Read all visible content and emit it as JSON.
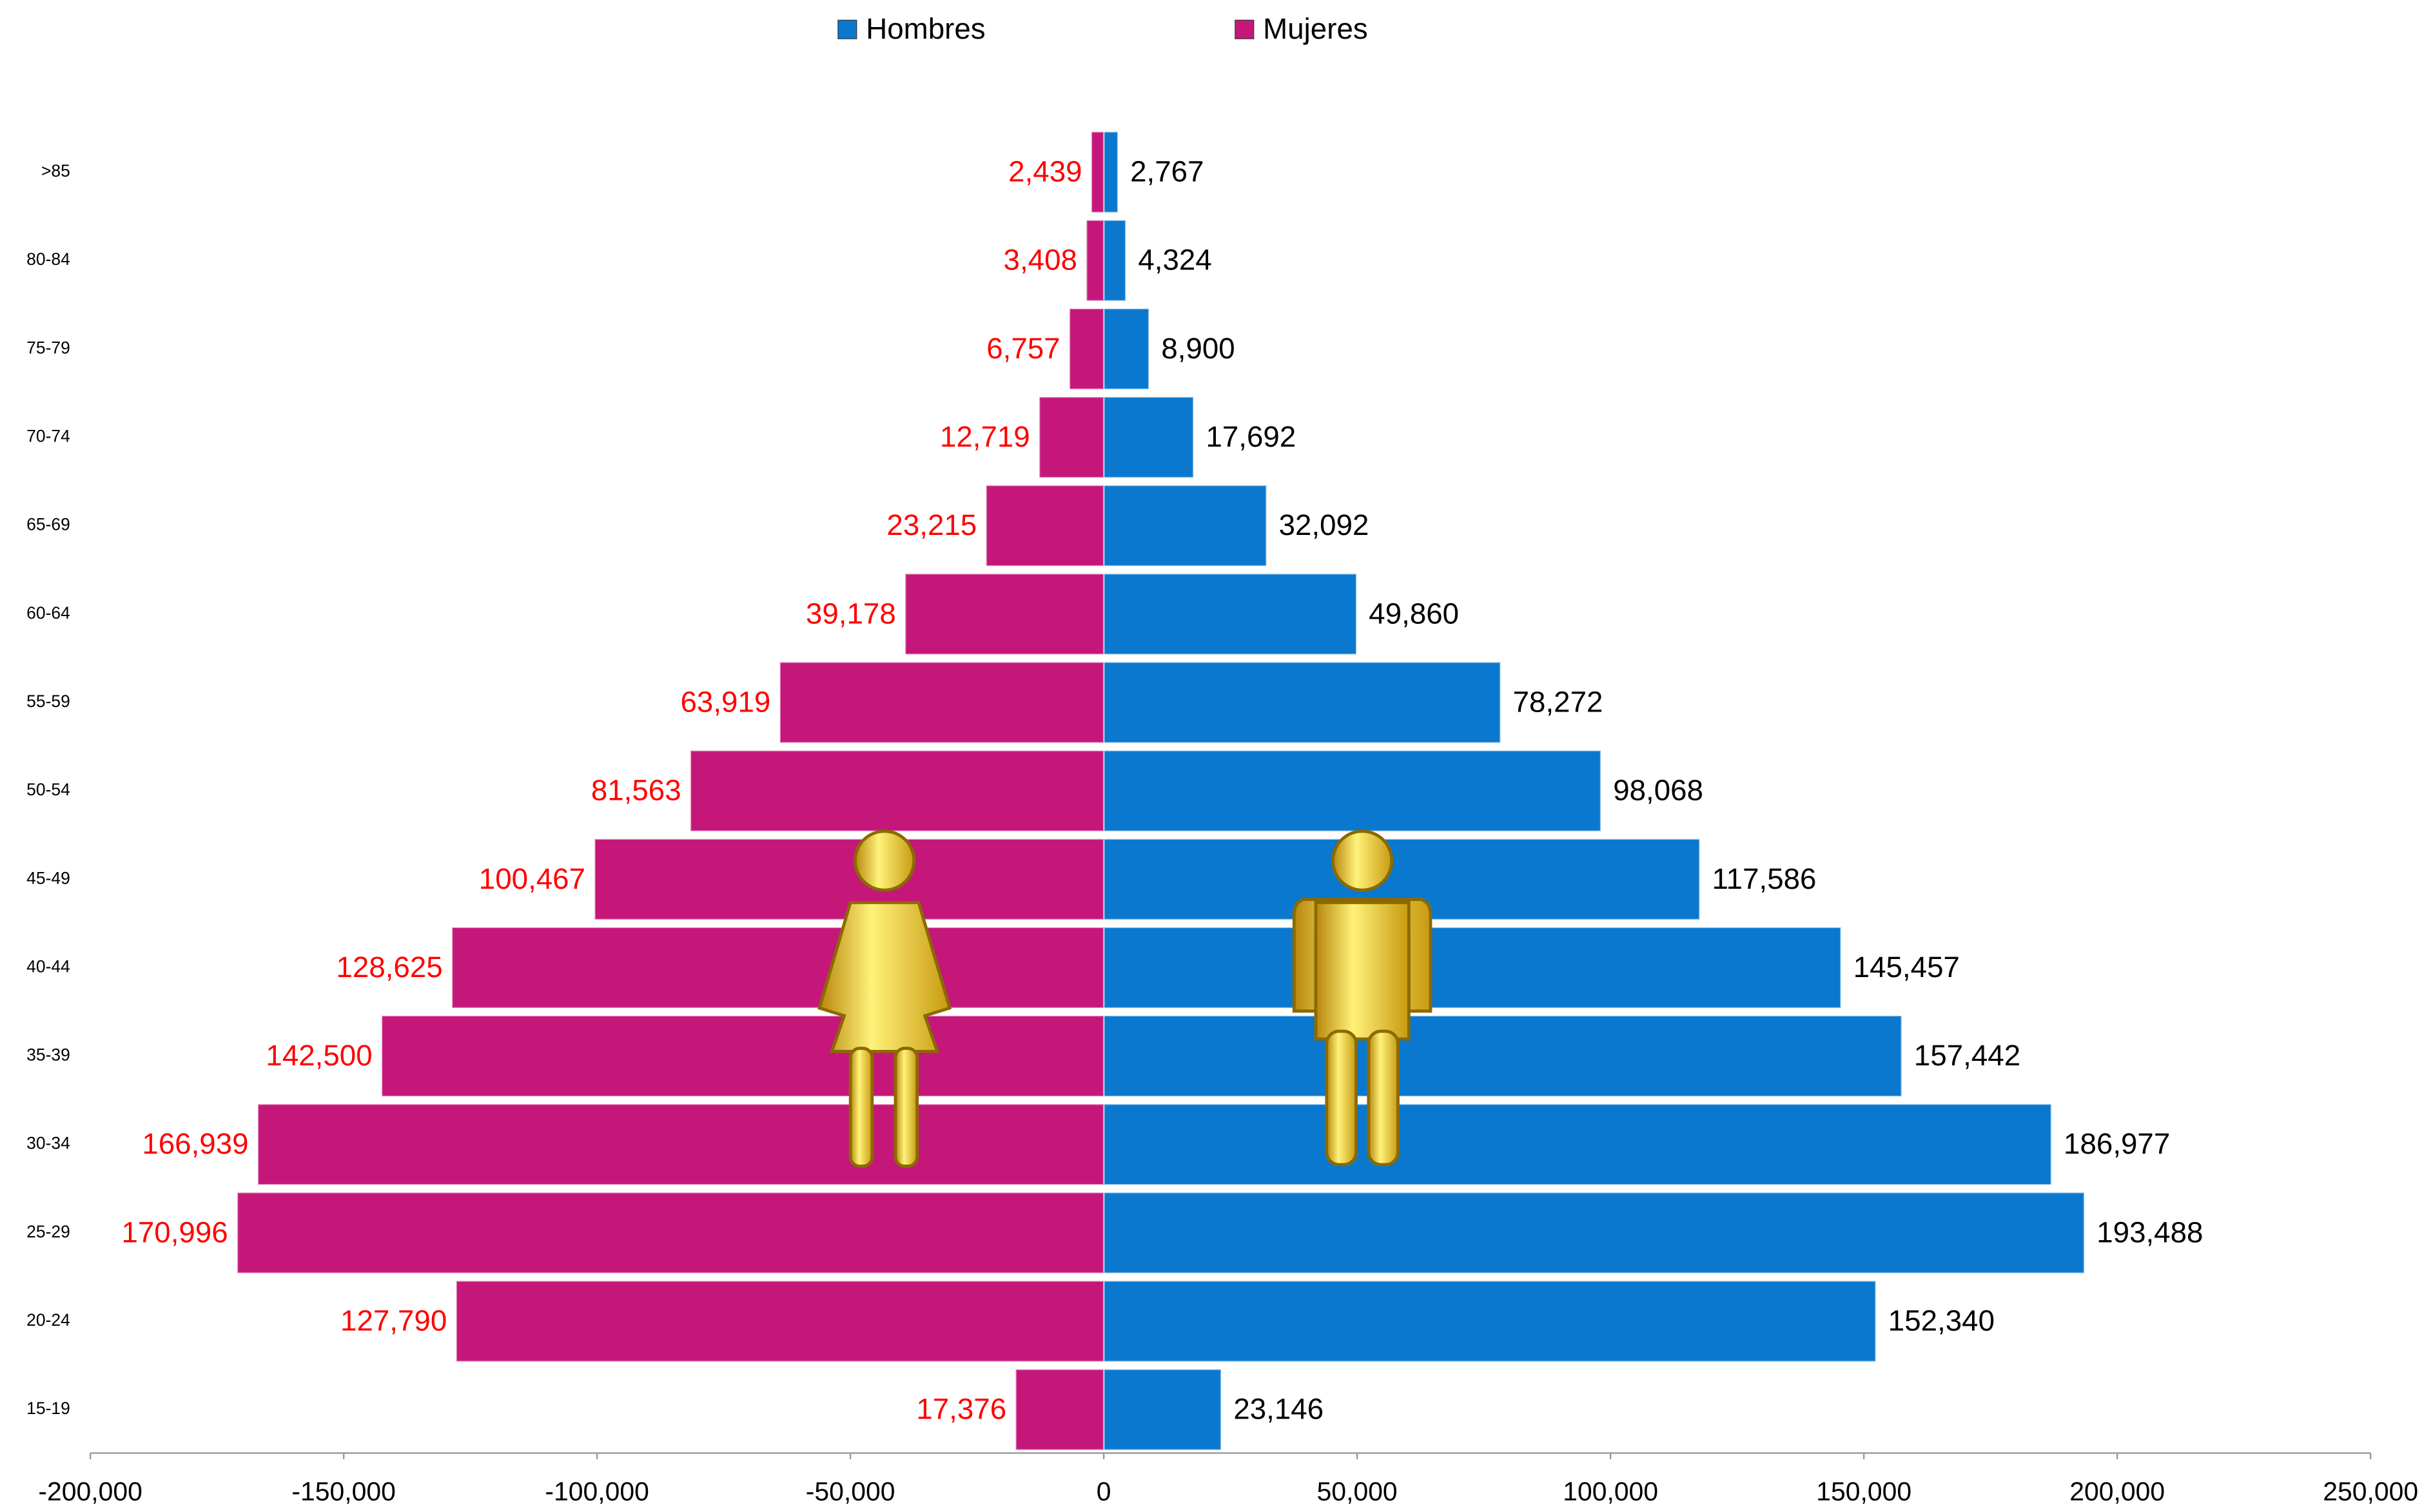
{
  "chart_data": {
    "type": "bar",
    "orientation": "horizontal",
    "categories": [
      ">85",
      "80-84",
      "75-79",
      "70-74",
      "65-69",
      "60-64",
      "55-59",
      "50-54",
      "45-49",
      "40-44",
      "35-39",
      "30-34",
      "25-29",
      "20-24",
      "15-19"
    ],
    "series": [
      {
        "name": "Hombres",
        "color": "#0a78cf",
        "label_color": "#000000",
        "values": [
          2767,
          4324,
          8900,
          17692,
          32092,
          49860,
          78272,
          98068,
          117586,
          145457,
          157442,
          186977,
          193488,
          152340,
          23146
        ],
        "value_labels": [
          "2,767",
          "4,324",
          "8,900",
          "17,692",
          "32,092",
          "49,860",
          "78,272",
          "98,068",
          "117,586",
          "145,457",
          "157,442",
          "186,977",
          "193,488",
          "152,340",
          "23,146"
        ]
      },
      {
        "name": "Mujeres",
        "color": "#c5177a",
        "label_color": "#ff0000",
        "values": [
          -2439,
          -3408,
          -6757,
          -12719,
          -23215,
          -39178,
          -63919,
          -81563,
          -100467,
          -128625,
          -142500,
          -166939,
          -170996,
          -127790,
          -17376
        ],
        "value_labels": [
          "2,439",
          "3,408",
          "6,757",
          "12,719",
          "23,215",
          "39,178",
          "63,919",
          "81,563",
          "100,467",
          "128,625",
          "142,500",
          "166,939",
          "170,996",
          "127,790",
          "17,376"
        ]
      }
    ],
    "xlim": [
      -200000,
      250000
    ],
    "xticks": [
      {
        "value": -200000,
        "label": "-200,000"
      },
      {
        "value": -150000,
        "label": "-150,000"
      },
      {
        "value": -100000,
        "label": "-100,000"
      },
      {
        "value": -50000,
        "label": "-50,000"
      },
      0,
      {
        "value": 50000,
        "label": "50,000"
      },
      {
        "value": 100000,
        "label": "100,000"
      },
      {
        "value": 150000,
        "label": "150,000"
      },
      {
        "value": 200000,
        "label": "200,000"
      },
      {
        "value": 250000,
        "label": "250,000"
      }
    ],
    "legend": "top",
    "grid": false
  }
}
